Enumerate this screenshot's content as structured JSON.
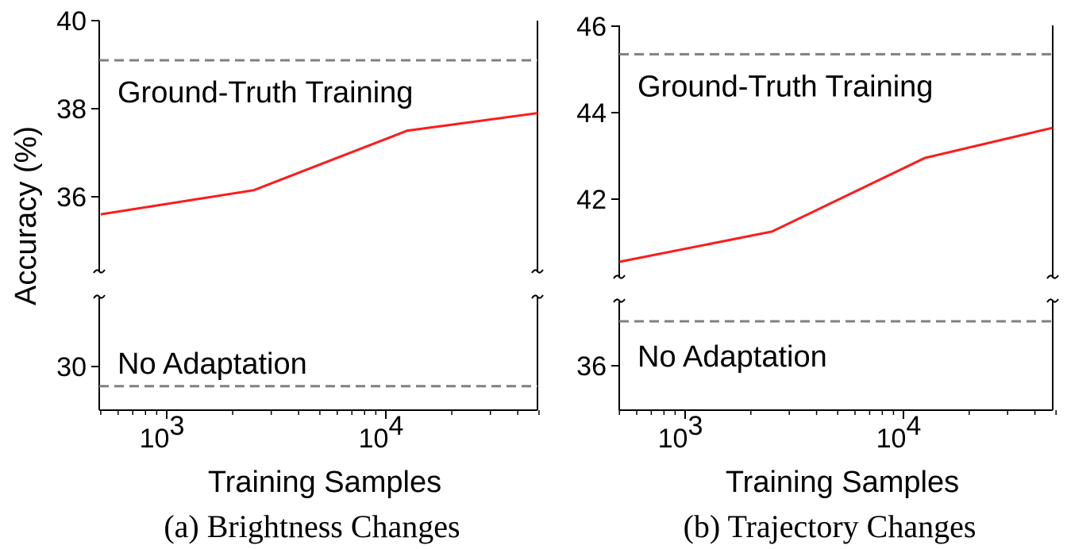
{
  "ylabel": "Accuracy (%)",
  "chart_data": [
    {
      "type": "line",
      "caption": "(a) Brightness Changes",
      "xlabel": "Training Samples",
      "ylabel": "Accuracy (%)",
      "x_scale": "log",
      "xlim": [
        500,
        50000
      ],
      "x_ticks": [
        {
          "value": 1000,
          "base": "10",
          "exp": "3"
        },
        {
          "value": 10000,
          "base": "10",
          "exp": "4"
        }
      ],
      "y_broken": true,
      "ylim_upper": [
        34,
        40
      ],
      "ylim_lower": [
        29,
        31
      ],
      "y_ticks_upper": [
        36,
        38,
        40
      ],
      "y_ticks_lower": [
        30
      ],
      "series": [
        {
          "color": "#ff1a1a",
          "x": [
            500,
            2500,
            12500,
            50000
          ],
          "y": [
            35.6,
            36.15,
            37.5,
            37.9
          ]
        }
      ],
      "reference_lines": [
        {
          "label": "Ground-Truth Training",
          "y": 39.1
        },
        {
          "label": "No Adaptation",
          "y": 29.55
        }
      ]
    },
    {
      "type": "line",
      "caption": "(b) Trajectory Changes",
      "xlabel": "Training Samples",
      "ylabel": "",
      "x_scale": "log",
      "xlim": [
        500,
        50000
      ],
      "x_ticks": [
        {
          "value": 1000,
          "base": "10",
          "exp": "3"
        },
        {
          "value": 10000,
          "base": "10",
          "exp": "4"
        }
      ],
      "y_broken": true,
      "ylim_upper": [
        40,
        46
      ],
      "ylim_lower": [
        35,
        38
      ],
      "y_ticks_upper": [
        42,
        44,
        46
      ],
      "y_ticks_lower": [
        36
      ],
      "series": [
        {
          "color": "#ff1a1a",
          "x": [
            500,
            2500,
            12500,
            50000
          ],
          "y": [
            40.55,
            41.25,
            42.95,
            43.65
          ]
        }
      ],
      "reference_lines": [
        {
          "label": "Ground-Truth Training",
          "y": 45.35
        },
        {
          "label": "No Adaptation",
          "y": 37.0
        }
      ]
    }
  ]
}
